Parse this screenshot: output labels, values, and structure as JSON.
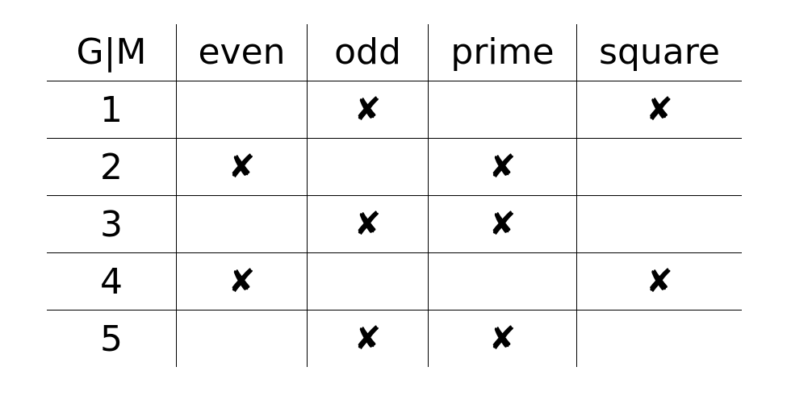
{
  "table": {
    "corner": "G|M",
    "attributes": [
      "even",
      "odd",
      "prime",
      "square"
    ],
    "mark": "✘",
    "rows": [
      {
        "label": "1",
        "cells": [
          false,
          true,
          false,
          true
        ]
      },
      {
        "label": "2",
        "cells": [
          true,
          false,
          true,
          false
        ]
      },
      {
        "label": "3",
        "cells": [
          false,
          true,
          true,
          false
        ]
      },
      {
        "label": "4",
        "cells": [
          true,
          false,
          false,
          true
        ]
      },
      {
        "label": "5",
        "cells": [
          false,
          true,
          true,
          false
        ]
      }
    ]
  }
}
